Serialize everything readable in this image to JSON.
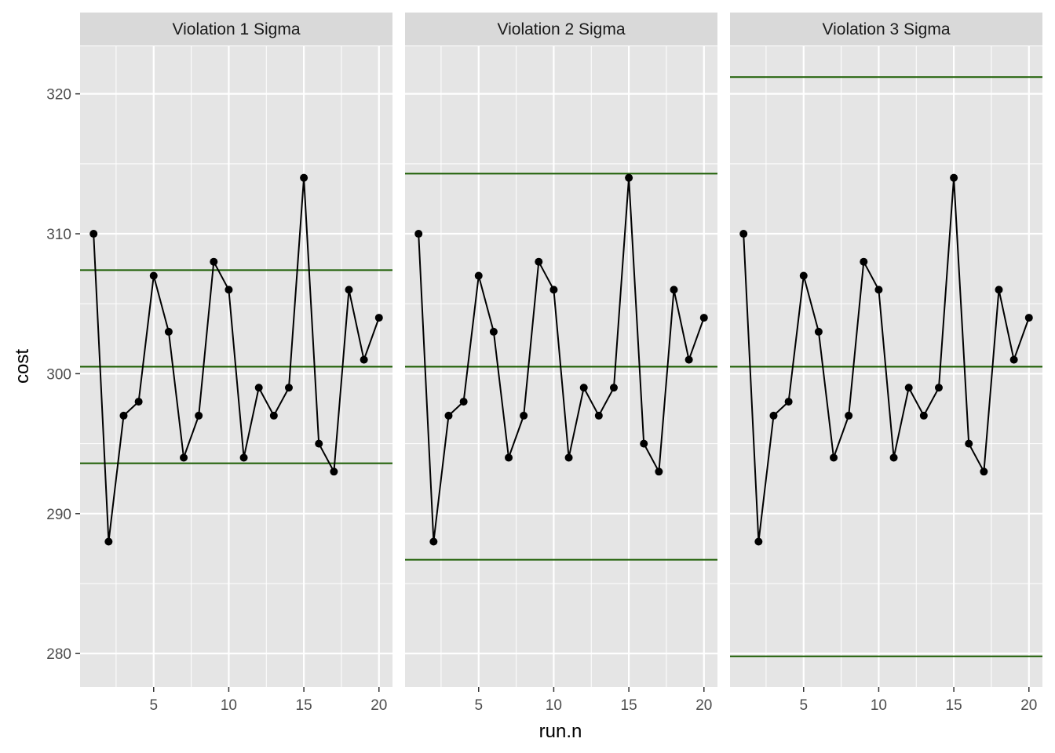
{
  "chart_data": {
    "type": "line",
    "layout": "faceted",
    "xlabel": "run.n",
    "ylabel": "cost",
    "xlim": [
      0.1,
      20.9
    ],
    "ylim": [
      277.6,
      323.4
    ],
    "x_ticks": [
      5,
      10,
      15,
      20
    ],
    "y_ticks": [
      280,
      290,
      300,
      310,
      320
    ],
    "grid": true,
    "colors": {
      "panel_bg": "#e5e5e5",
      "strip_bg": "#d9d9d9",
      "grid": "#ffffff",
      "series": "#000000",
      "control_lines": "#1a5c00"
    },
    "x": [
      1,
      2,
      3,
      4,
      5,
      6,
      7,
      8,
      9,
      10,
      11,
      12,
      13,
      14,
      15,
      16,
      17,
      18,
      19,
      20
    ],
    "y": [
      310,
      288,
      297,
      298,
      307,
      303,
      294,
      297,
      308,
      306,
      294,
      299,
      297,
      299,
      314,
      295,
      293,
      306,
      301,
      304
    ],
    "facets": [
      {
        "label": "Violation 1 Sigma",
        "center": 300.5,
        "upper": 307.4,
        "lower": 293.6
      },
      {
        "label": "Violation 2 Sigma",
        "center": 300.5,
        "upper": 314.3,
        "lower": 286.7
      },
      {
        "label": "Violation 3 Sigma",
        "center": 300.5,
        "upper": 321.2,
        "lower": 279.8
      }
    ]
  }
}
